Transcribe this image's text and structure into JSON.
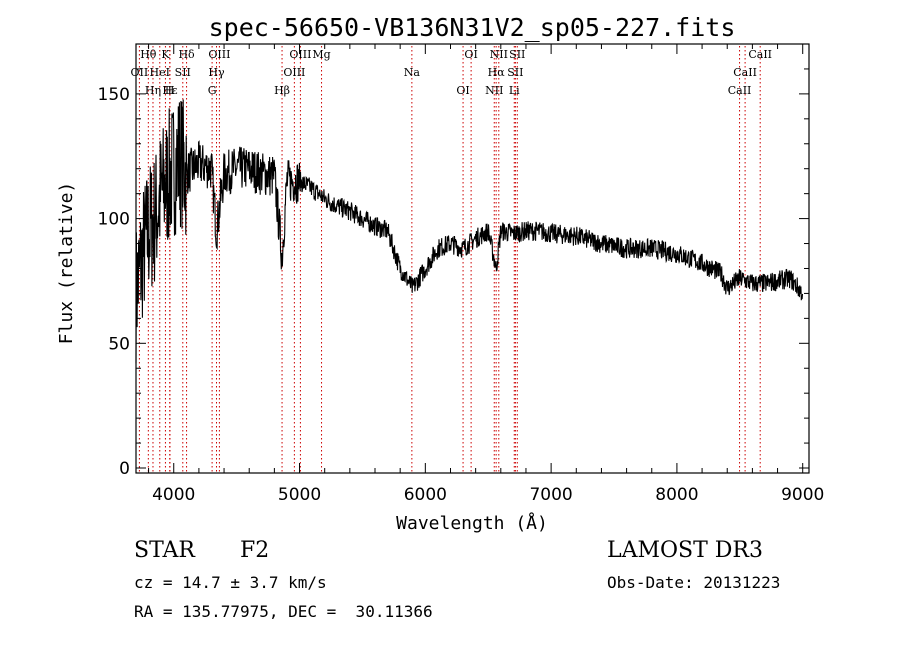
{
  "chart_data": {
    "type": "line",
    "title": "spec-56650-VB136N31V2_sp05-227.fits",
    "xlabel": "Wavelength (Å)",
    "ylabel": "Flux (relative)",
    "xlim": [
      3700,
      9050
    ],
    "ylim": [
      -2,
      170
    ],
    "x_ticks": [
      4000,
      5000,
      6000,
      7000,
      8000,
      9000
    ],
    "y_ticks": [
      0,
      50,
      100,
      150
    ],
    "grid": false,
    "line_color": "#000000",
    "marker_color": "#cc0000",
    "series": [
      {
        "name": "flux",
        "x": [
          3700,
          3750,
          3800,
          3850,
          3900,
          3950,
          4000,
          4050,
          4100,
          4150,
          4200,
          4300,
          4340,
          4400,
          4500,
          4600,
          4700,
          4800,
          4861,
          4900,
          5000,
          5100,
          5200,
          5300,
          5400,
          5500,
          5600,
          5700,
          5800,
          5900,
          6000,
          6100,
          6200,
          6300,
          6400,
          6500,
          6563,
          6600,
          6700,
          6800,
          6900,
          7000,
          7200,
          7400,
          7600,
          7800,
          8000,
          8200,
          8350,
          8400,
          8500,
          8600,
          8700,
          8800,
          8900,
          9000
        ],
        "y": [
          70,
          85,
          95,
          100,
          110,
          115,
          120,
          125,
          118,
          120,
          122,
          120,
          95,
          118,
          120,
          120,
          118,
          117,
          85,
          115,
          115,
          112,
          108,
          105,
          103,
          100,
          97,
          95,
          80,
          72,
          80,
          88,
          90,
          88,
          92,
          95,
          80,
          95,
          94,
          95,
          95,
          94,
          93,
          90,
          88,
          88,
          86,
          82,
          78,
          72,
          76,
          74,
          74,
          75,
          76,
          70
        ]
      }
    ],
    "lines": [
      {
        "label": "Hθ",
        "x": 3798
      },
      {
        "label": "OII",
        "x": 3727
      },
      {
        "label": "Hε",
        "x": 3970
      },
      {
        "label": "K",
        "x": 3934
      },
      {
        "label": "HeI",
        "x": 3889
      },
      {
        "label": "Hη",
        "x": 3835
      },
      {
        "label": "Hδ",
        "x": 4102
      },
      {
        "label": "SII",
        "x": 4072
      },
      {
        "label": "H",
        "x": 3968
      },
      {
        "label": "OIII",
        "x": 4363
      },
      {
        "label": "Hγ",
        "x": 4340
      },
      {
        "label": "G",
        "x": 4305
      },
      {
        "label": "OIII",
        "x": 5007
      },
      {
        "label": "OIII",
        "x": 4959
      },
      {
        "label": "Hβ",
        "x": 4861
      },
      {
        "label": "Mg",
        "x": 5175
      },
      {
        "label": "Na",
        "x": 5893
      },
      {
        "label": "OI",
        "x": 6300
      },
      {
        "label": "OI",
        "x": 6364
      },
      {
        "label": "Hα",
        "x": 6563
      },
      {
        "label": "NII",
        "x": 6548
      },
      {
        "label": "NII",
        "x": 6584
      },
      {
        "label": "SII",
        "x": 6716
      },
      {
        "label": "Li",
        "x": 6707
      },
      {
        "label": "SII",
        "x": 6731
      },
      {
        "label": "CaII",
        "x": 8542
      },
      {
        "label": "CaII",
        "x": 8498
      },
      {
        "label": "CaII",
        "x": 8662
      }
    ]
  },
  "info": {
    "object_class": "STAR",
    "subclass": "F2",
    "survey": "LAMOST DR3",
    "cz": "cz = 14.7 ± 3.7 km/s",
    "obs_date": "Obs-Date: 20131223",
    "coords": "RA = 135.77975, DEC =  30.11366"
  }
}
